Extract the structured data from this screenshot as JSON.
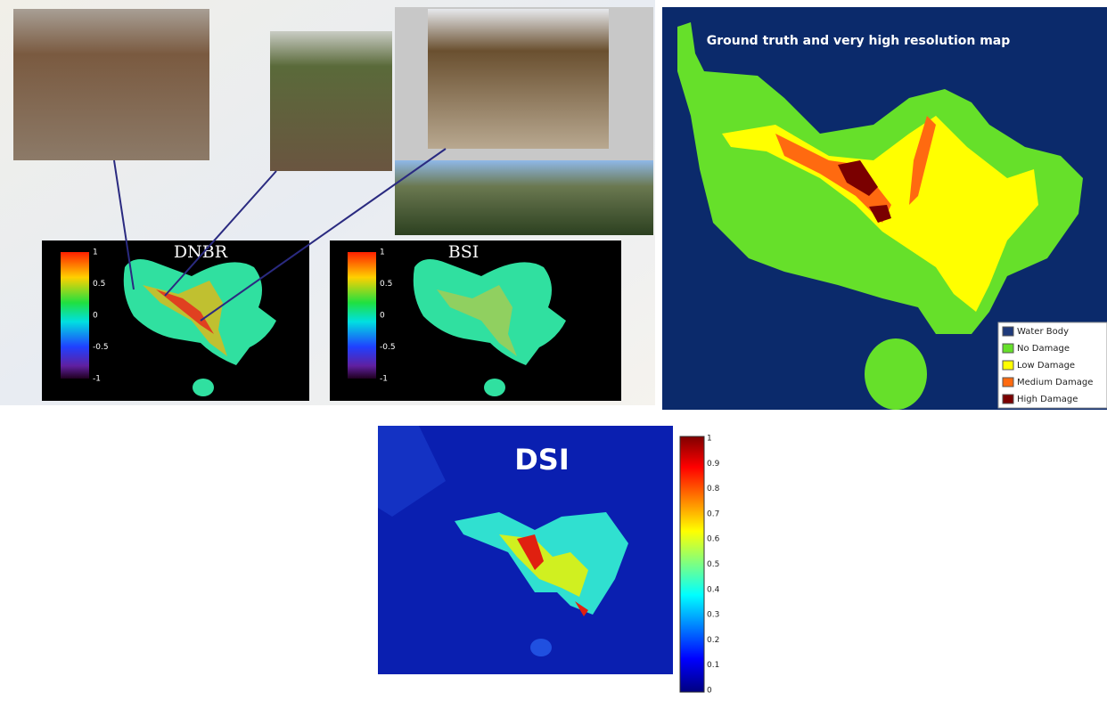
{
  "dnbr": {
    "title": "DNBR",
    "colorbar_ticks": [
      "1",
      "0.5",
      "0",
      "-0.5",
      "-1"
    ]
  },
  "bsi": {
    "title": "BSI",
    "colorbar_ticks": [
      "1",
      "0.5",
      "0",
      "-0.5",
      "-1"
    ]
  },
  "ground_truth": {
    "title": "Ground truth and very high resolution map",
    "legend": [
      {
        "label": "Water Body",
        "color": "#1f3a7a"
      },
      {
        "label": "No Damage",
        "color": "#66e02a"
      },
      {
        "label": "Low Damage",
        "color": "#ffff00"
      },
      {
        "label": "Medium Damage",
        "color": "#ff6a10"
      },
      {
        "label": "High Damage",
        "color": "#7a0000"
      }
    ]
  },
  "dsi": {
    "title": "DSI",
    "colorbar_ticks": [
      "1",
      "0.9",
      "0.8",
      "0.7",
      "0.6",
      "0.5",
      "0.4",
      "0.3",
      "0.2",
      "0.1",
      "0"
    ]
  }
}
